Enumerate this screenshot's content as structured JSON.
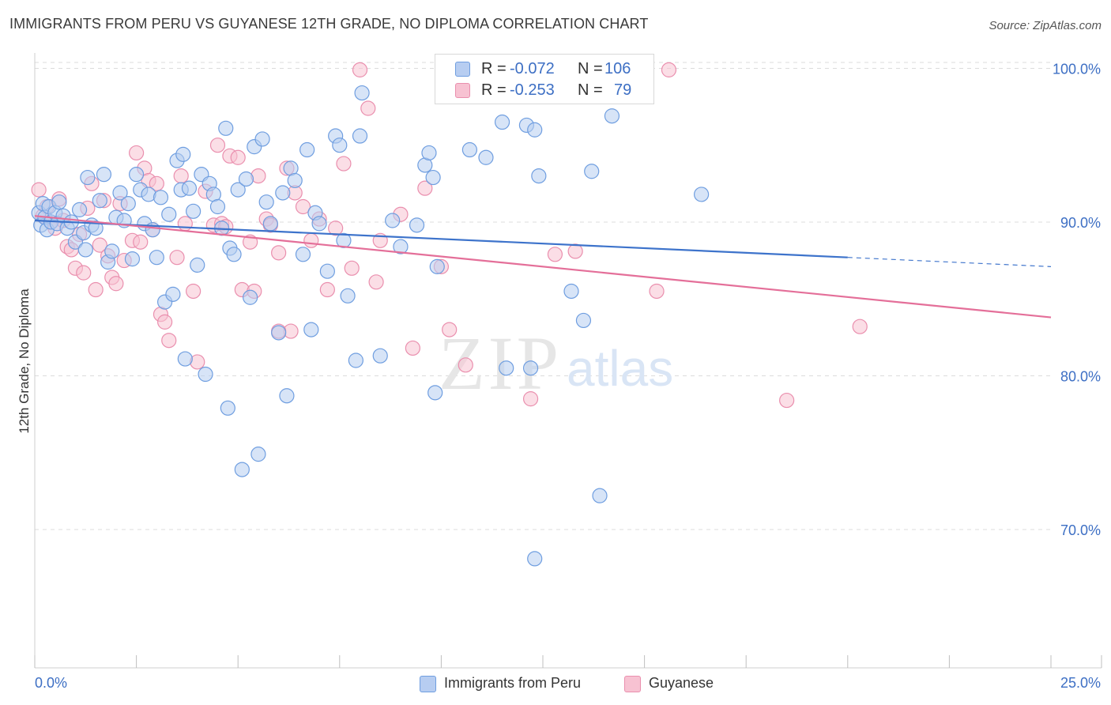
{
  "title": "IMMIGRANTS FROM PERU VS GUYANESE 12TH GRADE, NO DIPLOMA CORRELATION CHART",
  "source": "Source: ZipAtlas.com",
  "watermark": {
    "zip": "ZIP",
    "atlas": "atlas"
  },
  "legend_top": {
    "rows": [
      {
        "r_label": "R =",
        "r_value": "-0.072",
        "n_label": "N =",
        "n_value": "106",
        "color": "#6f9ee0"
      },
      {
        "r_label": "R =",
        "r_value": "-0.253",
        "n_label": "N =",
        "n_value": "79",
        "color": "#ea8fae"
      }
    ]
  },
  "legend_bottom": [
    {
      "label": "Immigrants from Peru",
      "color": "#6f9ee0"
    },
    {
      "label": "Guyanese",
      "color": "#ea8fae"
    }
  ],
  "colors": {
    "blue_fill": "#b7cdf1",
    "blue_stroke": "#6f9ee0",
    "blue_line": "#3d73cb",
    "pink_fill": "#f7c2d2",
    "pink_stroke": "#ea8fae",
    "pink_line": "#e46f99",
    "tick_text": "#3d6fc4",
    "grid": "#dcdcdc"
  },
  "chart_data": {
    "type": "scatter",
    "title": "IMMIGRANTS FROM PERU VS GUYANESE 12TH GRADE, NO DIPLOMA CORRELATION CHART",
    "xlabel": "",
    "ylabel": "12th Grade, No Diploma",
    "xlim": [
      0,
      25
    ],
    "ylim": [
      61,
      101
    ],
    "x_tick_labels": [
      "0.0%",
      "25.0%"
    ],
    "y_ticks": [
      70,
      80,
      90,
      100
    ],
    "y_tick_labels": [
      "70.0%",
      "80.0%",
      "90.0%",
      "100.0%"
    ],
    "grid": true,
    "legend_placement": "top-center",
    "series": [
      {
        "name": "Immigrants from Peru",
        "r": -0.072,
        "n": 106,
        "trend": {
          "x": [
            0,
            20
          ],
          "y": [
            90.1,
            87.7
          ],
          "dashed_extension": {
            "x": [
              20,
              25
            ],
            "y": [
              87.7,
              87.1
            ]
          }
        },
        "points": [
          [
            0.1,
            90.6
          ],
          [
            0.15,
            89.8
          ],
          [
            0.2,
            91.2
          ],
          [
            0.25,
            90.3
          ],
          [
            0.3,
            89.5
          ],
          [
            0.35,
            91.0
          ],
          [
            0.4,
            90.0
          ],
          [
            0.5,
            90.6
          ],
          [
            0.55,
            89.9
          ],
          [
            0.6,
            91.3
          ],
          [
            0.7,
            90.4
          ],
          [
            0.8,
            89.6
          ],
          [
            0.9,
            90.0
          ],
          [
            1.0,
            88.7
          ],
          [
            1.1,
            90.8
          ],
          [
            1.2,
            89.3
          ],
          [
            1.25,
            88.2
          ],
          [
            1.3,
            92.9
          ],
          [
            1.4,
            89.8
          ],
          [
            1.5,
            89.6
          ],
          [
            1.6,
            91.4
          ],
          [
            1.7,
            93.1
          ],
          [
            1.8,
            87.4
          ],
          [
            1.9,
            88.1
          ],
          [
            2.0,
            90.3
          ],
          [
            2.1,
            91.9
          ],
          [
            2.2,
            90.1
          ],
          [
            2.3,
            91.2
          ],
          [
            2.4,
            87.6
          ],
          [
            2.5,
            93.1
          ],
          [
            2.6,
            92.1
          ],
          [
            2.7,
            89.9
          ],
          [
            2.8,
            91.8
          ],
          [
            2.9,
            89.5
          ],
          [
            3.0,
            87.7
          ],
          [
            3.1,
            91.6
          ],
          [
            3.2,
            84.8
          ],
          [
            3.3,
            90.5
          ],
          [
            3.4,
            85.3
          ],
          [
            3.5,
            94.0
          ],
          [
            3.6,
            92.1
          ],
          [
            3.65,
            94.4
          ],
          [
            3.7,
            81.1
          ],
          [
            3.8,
            92.2
          ],
          [
            3.9,
            90.7
          ],
          [
            4.0,
            87.2
          ],
          [
            4.1,
            93.1
          ],
          [
            4.2,
            80.1
          ],
          [
            4.3,
            92.5
          ],
          [
            4.4,
            91.8
          ],
          [
            4.5,
            91.0
          ],
          [
            4.6,
            89.6
          ],
          [
            4.7,
            96.1
          ],
          [
            4.75,
            77.9
          ],
          [
            4.8,
            88.3
          ],
          [
            4.9,
            87.9
          ],
          [
            5.0,
            92.1
          ],
          [
            5.1,
            73.9
          ],
          [
            5.2,
            92.8
          ],
          [
            5.3,
            85.1
          ],
          [
            5.4,
            94.9
          ],
          [
            5.5,
            74.9
          ],
          [
            5.6,
            95.4
          ],
          [
            5.7,
            91.3
          ],
          [
            5.8,
            89.9
          ],
          [
            6.0,
            82.8
          ],
          [
            6.1,
            91.9
          ],
          [
            6.2,
            78.7
          ],
          [
            6.3,
            93.5
          ],
          [
            6.4,
            92.7
          ],
          [
            6.6,
            87.9
          ],
          [
            6.7,
            94.7
          ],
          [
            6.8,
            83.0
          ],
          [
            6.9,
            90.6
          ],
          [
            7.0,
            89.9
          ],
          [
            7.2,
            86.8
          ],
          [
            7.4,
            95.6
          ],
          [
            7.5,
            95.0
          ],
          [
            7.6,
            88.8
          ],
          [
            7.7,
            85.2
          ],
          [
            7.9,
            81.0
          ],
          [
            8.0,
            95.6
          ],
          [
            8.05,
            98.4
          ],
          [
            8.5,
            81.3
          ],
          [
            8.8,
            90.1
          ],
          [
            9.0,
            88.4
          ],
          [
            9.4,
            89.8
          ],
          [
            9.6,
            93.7
          ],
          [
            9.7,
            94.5
          ],
          [
            9.8,
            92.9
          ],
          [
            9.85,
            78.9
          ],
          [
            9.9,
            87.1
          ],
          [
            10.5,
            98.6
          ],
          [
            10.7,
            94.7
          ],
          [
            11.0,
            100.0
          ],
          [
            11.1,
            94.2
          ],
          [
            11.5,
            96.5
          ],
          [
            11.6,
            80.5
          ],
          [
            12.1,
            96.3
          ],
          [
            12.3,
            96.0
          ],
          [
            13.0,
            100.0
          ],
          [
            13.7,
            93.3
          ],
          [
            14.2,
            96.9
          ],
          [
            12.2,
            80.5
          ],
          [
            12.3,
            68.1
          ],
          [
            12.4,
            93.0
          ],
          [
            13.2,
            85.5
          ],
          [
            13.5,
            83.6
          ],
          [
            13.9,
            72.2
          ],
          [
            16.4,
            91.8
          ]
        ]
      },
      {
        "name": "Guyanese",
        "r": -0.253,
        "n": 79,
        "trend": {
          "x": [
            0,
            25
          ],
          "y": [
            90.4,
            83.8
          ]
        },
        "points": [
          [
            0.1,
            92.1
          ],
          [
            0.2,
            90.4
          ],
          [
            0.3,
            91.0
          ],
          [
            0.4,
            90.0
          ],
          [
            0.5,
            89.6
          ],
          [
            0.6,
            91.5
          ],
          [
            0.7,
            90.1
          ],
          [
            0.8,
            88.4
          ],
          [
            0.9,
            88.2
          ],
          [
            1.0,
            87.0
          ],
          [
            1.1,
            89.2
          ],
          [
            1.2,
            86.7
          ],
          [
            1.3,
            90.9
          ],
          [
            1.4,
            92.5
          ],
          [
            1.5,
            85.6
          ],
          [
            1.6,
            88.5
          ],
          [
            1.7,
            91.4
          ],
          [
            1.8,
            87.8
          ],
          [
            1.9,
            86.4
          ],
          [
            2.0,
            86.0
          ],
          [
            2.1,
            91.2
          ],
          [
            2.2,
            87.5
          ],
          [
            2.4,
            88.8
          ],
          [
            2.5,
            94.5
          ],
          [
            2.6,
            88.7
          ],
          [
            2.7,
            93.5
          ],
          [
            2.8,
            92.7
          ],
          [
            2.9,
            89.5
          ],
          [
            3.0,
            92.5
          ],
          [
            3.1,
            84.0
          ],
          [
            3.2,
            83.5
          ],
          [
            3.3,
            82.3
          ],
          [
            3.5,
            87.7
          ],
          [
            3.6,
            93.0
          ],
          [
            3.7,
            89.9
          ],
          [
            3.9,
            85.5
          ],
          [
            4.0,
            80.9
          ],
          [
            4.2,
            92.0
          ],
          [
            4.4,
            89.8
          ],
          [
            4.5,
            95.0
          ],
          [
            4.6,
            89.9
          ],
          [
            4.7,
            89.7
          ],
          [
            4.8,
            94.3
          ],
          [
            5.0,
            94.2
          ],
          [
            5.1,
            85.6
          ],
          [
            5.3,
            88.7
          ],
          [
            5.4,
            85.5
          ],
          [
            5.5,
            93.0
          ],
          [
            5.7,
            90.2
          ],
          [
            5.8,
            89.8
          ],
          [
            6.0,
            88.0
          ],
          [
            6.2,
            93.5
          ],
          [
            6.3,
            82.9
          ],
          [
            6.4,
            91.9
          ],
          [
            6.6,
            91.0
          ],
          [
            6.8,
            88.8
          ],
          [
            7.0,
            90.2
          ],
          [
            7.2,
            85.6
          ],
          [
            7.4,
            89.6
          ],
          [
            7.6,
            93.8
          ],
          [
            7.8,
            87.0
          ],
          [
            8.0,
            99.9
          ],
          [
            8.2,
            97.4
          ],
          [
            8.4,
            86.1
          ],
          [
            8.5,
            88.8
          ],
          [
            9.0,
            90.5
          ],
          [
            9.3,
            81.8
          ],
          [
            9.6,
            92.2
          ],
          [
            10.0,
            87.1
          ],
          [
            10.2,
            83.0
          ],
          [
            10.6,
            80.7
          ],
          [
            12.2,
            78.5
          ],
          [
            12.8,
            87.9
          ],
          [
            13.3,
            88.1
          ],
          [
            15.3,
            85.5
          ],
          [
            15.6,
            99.9
          ],
          [
            18.5,
            78.4
          ],
          [
            20.3,
            83.2
          ],
          [
            6.0,
            82.9
          ]
        ]
      }
    ]
  }
}
